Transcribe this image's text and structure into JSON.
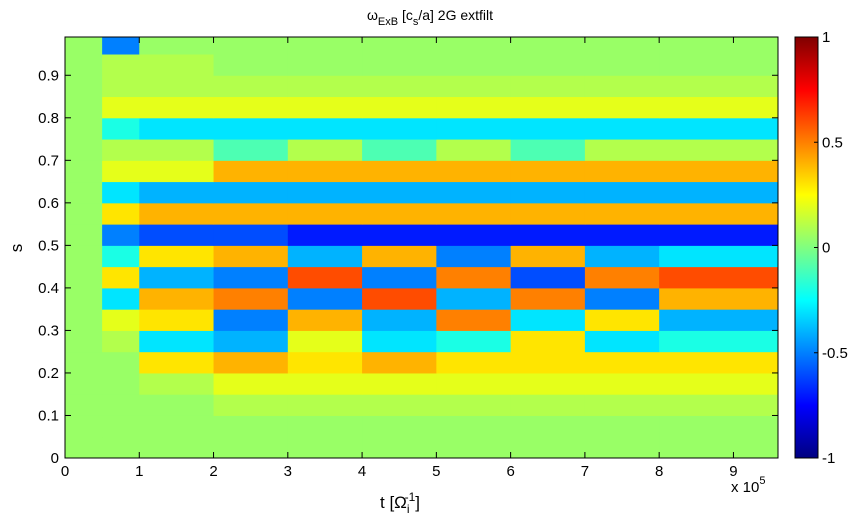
{
  "chart_data": {
    "type": "heatmap",
    "title": {
      "symbol": "ω",
      "symbol_sub": "ExB",
      "unit": " [c",
      "unit_sub": "s",
      "rest": "/a]   2G extfilt"
    },
    "x_label": {
      "main": "t [Ω",
      "sub": "i",
      "sup": "-1",
      "end": "]"
    },
    "x_multiplier": {
      "base": "x 10",
      "exp": "5"
    },
    "y_label": "s",
    "xlim": [
      0,
      9.6
    ],
    "xticks": [
      0,
      1,
      2,
      3,
      4,
      5,
      6,
      7,
      8,
      9
    ],
    "ylim": [
      0,
      0.99
    ],
    "yticks": [
      0,
      0.1,
      0.2,
      0.3,
      0.4,
      0.5,
      0.6,
      0.7,
      0.8,
      0.9
    ],
    "clim": [
      -1,
      1
    ],
    "cticks": [
      -1,
      -0.5,
      0,
      0.5,
      1
    ],
    "colormap": "jet",
    "xbins": [
      0,
      0.5,
      1,
      2,
      3,
      4,
      5,
      6,
      7,
      8,
      9.6
    ],
    "ybins": [
      0,
      0.05,
      0.1,
      0.15,
      0.2,
      0.25,
      0.3,
      0.35,
      0.4,
      0.45,
      0.5,
      0.55,
      0.6,
      0.65,
      0.7,
      0.75,
      0.8,
      0.85,
      0.9,
      0.95,
      0.99
    ],
    "z": [
      [
        0.05,
        0.05,
        0.05,
        0.05,
        0.05,
        0.05,
        0.05,
        0.05,
        0.05,
        0.05
      ],
      [
        0.05,
        0.05,
        0.05,
        0.05,
        0.05,
        0.05,
        0.05,
        0.05,
        0.05,
        0.05
      ],
      [
        0.05,
        0.05,
        0.05,
        0.1,
        0.1,
        0.1,
        0.1,
        0.1,
        0.1,
        0.1
      ],
      [
        0.05,
        0.05,
        0.1,
        0.2,
        0.2,
        0.2,
        0.2,
        0.2,
        0.2,
        0.2
      ],
      [
        0.05,
        0.05,
        0.3,
        0.4,
        0.3,
        0.4,
        0.3,
        0.3,
        0.3,
        0.3
      ],
      [
        0.05,
        0.1,
        -0.3,
        -0.4,
        0.2,
        -0.3,
        -0.2,
        0.3,
        -0.3,
        -0.2
      ],
      [
        0.05,
        0.2,
        0.3,
        -0.5,
        0.4,
        -0.4,
        0.5,
        -0.3,
        0.3,
        -0.4
      ],
      [
        0.05,
        -0.3,
        0.4,
        0.5,
        -0.5,
        0.6,
        -0.4,
        0.5,
        -0.5,
        0.4
      ],
      [
        0.05,
        0.3,
        -0.4,
        -0.5,
        0.6,
        -0.5,
        0.5,
        -0.6,
        0.5,
        0.6
      ],
      [
        0.05,
        -0.2,
        0.3,
        0.4,
        -0.4,
        0.4,
        -0.5,
        0.4,
        -0.4,
        -0.3
      ],
      [
        0.05,
        -0.5,
        -0.6,
        -0.6,
        -0.7,
        -0.7,
        -0.7,
        -0.7,
        -0.7,
        -0.7
      ],
      [
        0.05,
        0.3,
        0.4,
        0.4,
        0.4,
        0.4,
        0.4,
        0.4,
        0.4,
        0.4
      ],
      [
        0.05,
        -0.3,
        -0.4,
        -0.4,
        -0.4,
        -0.4,
        -0.4,
        -0.4,
        -0.4,
        -0.4
      ],
      [
        0.05,
        0.2,
        0.2,
        0.4,
        0.4,
        0.4,
        0.4,
        0.4,
        0.4,
        0.4
      ],
      [
        0.05,
        0.1,
        0.1,
        -0.1,
        0.1,
        -0.1,
        0.1,
        -0.1,
        0.1,
        0.1
      ],
      [
        0.05,
        -0.2,
        -0.3,
        -0.3,
        -0.3,
        -0.3,
        -0.3,
        -0.3,
        -0.3,
        -0.3
      ],
      [
        0.05,
        0.2,
        0.2,
        0.2,
        0.2,
        0.2,
        0.2,
        0.2,
        0.2,
        0.2
      ],
      [
        0.05,
        0.1,
        0.1,
        0.1,
        0.1,
        0.1,
        0.1,
        0.1,
        0.1,
        0.1
      ],
      [
        0.05,
        0.1,
        0.1,
        0.05,
        0.05,
        0.05,
        0.05,
        0.05,
        0.05,
        0.05
      ],
      [
        0.05,
        -0.5,
        0.05,
        0.05,
        0.05,
        0.05,
        0.05,
        0.05,
        0.05,
        0.05
      ]
    ]
  }
}
